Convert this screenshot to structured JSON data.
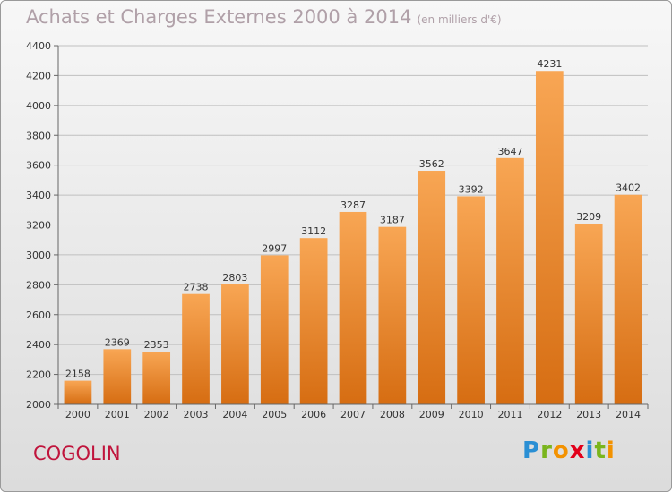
{
  "title": "Achats et Charges Externes 2000 à 2014",
  "unit": "(en milliers d'€)",
  "city": "COGOLIN",
  "logo": {
    "letters": [
      "P",
      "r",
      "o",
      "x",
      "i",
      "t",
      "i"
    ],
    "colors": [
      "#2a8fd4",
      "#7ab51d",
      "#f39200",
      "#e2001a",
      "#2a8fd4",
      "#7ab51d",
      "#f39200"
    ]
  },
  "colors": {
    "bar_top": "#f8a654",
    "bar_bottom": "#d66d12",
    "grid": "#bfbfbf"
  },
  "chart_data": {
    "type": "bar",
    "categories": [
      "2000",
      "2001",
      "2002",
      "2003",
      "2004",
      "2005",
      "2006",
      "2007",
      "2008",
      "2009",
      "2010",
      "2011",
      "2012",
      "2013",
      "2014"
    ],
    "values": [
      2158,
      2369,
      2353,
      2738,
      2803,
      2997,
      3112,
      3287,
      3187,
      3562,
      3392,
      3647,
      4231,
      3209,
      3402
    ],
    "ylim": [
      2000,
      4400
    ],
    "yticks": [
      2000,
      2200,
      2400,
      2600,
      2800,
      3000,
      3200,
      3400,
      3600,
      3800,
      4000,
      4200,
      4400
    ],
    "grid": true
  }
}
